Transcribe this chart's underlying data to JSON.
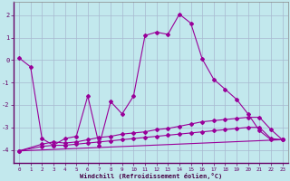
{
  "background_color": "#c2e8ed",
  "grid_color": "#a8b8d0",
  "line_color": "#990099",
  "xlim": [
    -0.5,
    23.5
  ],
  "ylim": [
    -4.6,
    2.6
  ],
  "xticks": [
    0,
    1,
    2,
    3,
    4,
    5,
    6,
    7,
    8,
    9,
    10,
    11,
    12,
    13,
    14,
    15,
    16,
    17,
    18,
    19,
    20,
    21,
    22,
    23
  ],
  "yticks": [
    -4,
    -3,
    -2,
    -1,
    0,
    1,
    2
  ],
  "xlabel": "Windchill (Refroidissement éolien,°C)",
  "line1_x": [
    0,
    1,
    2,
    3,
    4,
    5,
    6,
    7,
    8,
    9,
    10,
    11,
    12,
    13,
    14,
    15,
    16,
    17,
    18,
    19,
    20,
    21,
    22,
    23
  ],
  "line1_y": [
    0.1,
    -0.3,
    -3.5,
    -3.8,
    -3.5,
    -3.4,
    -1.6,
    -3.8,
    -1.85,
    -2.4,
    -1.6,
    1.1,
    1.25,
    1.15,
    2.05,
    1.65,
    0.05,
    -0.85,
    -1.3,
    -1.75,
    -2.4,
    -3.15,
    -3.55,
    -3.55
  ],
  "line2_x": [
    0,
    2,
    3,
    4,
    5,
    6,
    7,
    8,
    9,
    10,
    11,
    12,
    13,
    14,
    15,
    16,
    17,
    18,
    19,
    20,
    21,
    22,
    23
  ],
  "line2_y": [
    -4.05,
    -3.75,
    -3.65,
    -3.7,
    -3.65,
    -3.55,
    -3.45,
    -3.4,
    -3.3,
    -3.25,
    -3.2,
    -3.1,
    -3.05,
    -2.95,
    -2.85,
    -2.75,
    -2.7,
    -2.65,
    -2.6,
    -2.55,
    -2.55,
    -3.1,
    -3.55
  ],
  "line3_x": [
    0,
    2,
    3,
    4,
    5,
    6,
    7,
    8,
    9,
    10,
    11,
    12,
    13,
    14,
    15,
    16,
    17,
    18,
    19,
    20,
    21,
    22,
    23
  ],
  "line3_y": [
    -4.05,
    -3.85,
    -3.8,
    -3.8,
    -3.75,
    -3.7,
    -3.65,
    -3.6,
    -3.55,
    -3.5,
    -3.45,
    -3.4,
    -3.35,
    -3.3,
    -3.25,
    -3.2,
    -3.15,
    -3.1,
    -3.05,
    -3.0,
    -3.0,
    -3.5,
    -3.55
  ],
  "line4_x": [
    0,
    23
  ],
  "line4_y": [
    -4.05,
    -3.55
  ]
}
